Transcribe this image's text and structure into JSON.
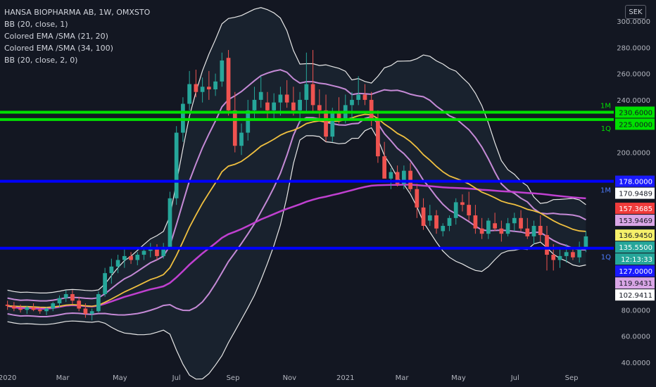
{
  "header": {
    "title": "HANSA BIOPHARMA AB, 1W, OMXSTO",
    "indicators": [
      "BB (20, close, 1)",
      "Colored EMA /SMA (21, 20)",
      "Colored EMA /SMA (34, 100)",
      "BB (20, close, 2, 0)"
    ],
    "currency": "SEK"
  },
  "colors": {
    "background": "#131722",
    "up": "#26a69a",
    "down": "#ef5350",
    "bb2": "#e8e8e8",
    "bb1": "#c58ad6",
    "ema21": "#f0c040",
    "ema34": "#c040d0",
    "green_level": "#00e000",
    "blue_level": "#0000ff"
  },
  "chart_data": {
    "type": "candlestick",
    "title": "HANSA BIOPHARMA AB, 1W, OMXSTO",
    "ylim": [
      40,
      300
    ],
    "y_ticks": [
      "300.0000",
      "280.0000",
      "260.0000",
      "240.0000",
      "220.0000",
      "200.0000",
      "80.0000",
      "60.0000",
      "40.0000"
    ],
    "y_tick_values": [
      300,
      280,
      260,
      240,
      220,
      200,
      80,
      60,
      40
    ],
    "x_ticks": [
      "2020",
      "Mar",
      "May",
      "Jul",
      "Sep",
      "Nov",
      "2021",
      "Mar",
      "May",
      "Jul",
      "Sep"
    ],
    "x_tick_weeks": [
      0,
      8.5,
      17.3,
      26,
      34.7,
      43.4,
      52,
      60.7,
      69.4,
      78.1,
      86.8
    ],
    "candles_ohlc": [
      [
        84,
        87,
        80,
        83
      ],
      [
        83,
        86,
        79,
        81
      ],
      [
        81,
        84,
        78,
        80
      ],
      [
        80,
        83,
        77,
        82
      ],
      [
        82,
        85,
        79,
        80
      ],
      [
        80,
        82,
        77,
        79
      ],
      [
        79,
        82,
        76,
        81
      ],
      [
        81,
        86,
        79,
        85
      ],
      [
        85,
        91,
        82,
        89
      ],
      [
        89,
        95,
        86,
        92
      ],
      [
        92,
        95,
        84,
        87
      ],
      [
        87,
        90,
        79,
        81
      ],
      [
        81,
        85,
        74,
        77
      ],
      [
        77,
        81,
        72,
        79
      ],
      [
        79,
        94,
        78,
        92
      ],
      [
        92,
        112,
        90,
        108
      ],
      [
        108,
        119,
        100,
        113
      ],
      [
        113,
        122,
        108,
        118
      ],
      [
        118,
        126,
        112,
        121
      ],
      [
        121,
        124,
        115,
        118
      ],
      [
        118,
        124,
        114,
        122
      ],
      [
        122,
        128,
        118,
        125
      ],
      [
        125,
        131,
        120,
        127
      ],
      [
        127,
        130,
        118,
        121
      ],
      [
        121,
        131,
        119,
        128
      ],
      [
        128,
        170,
        126,
        165
      ],
      [
        165,
        220,
        160,
        215
      ],
      [
        215,
        242,
        208,
        237
      ],
      [
        237,
        262,
        232,
        252
      ],
      [
        252,
        263,
        242,
        246
      ],
      [
        246,
        257,
        238,
        250
      ],
      [
        250,
        262,
        240,
        248
      ],
      [
        248,
        260,
        243,
        254
      ],
      [
        254,
        276,
        250,
        270
      ],
      [
        272,
        278,
        228,
        232
      ],
      [
        232,
        246,
        200,
        205
      ],
      [
        205,
        222,
        198,
        215
      ],
      [
        215,
        240,
        209,
        232
      ],
      [
        232,
        250,
        226,
        240
      ],
      [
        240,
        258,
        234,
        246
      ],
      [
        238,
        246,
        226,
        232
      ],
      [
        232,
        245,
        224,
        238
      ],
      [
        238,
        250,
        228,
        244
      ],
      [
        244,
        255,
        234,
        238
      ],
      [
        238,
        250,
        228,
        232
      ],
      [
        232,
        246,
        222,
        240
      ],
      [
        240,
        276,
        230,
        252
      ],
      [
        252,
        278,
        230,
        236
      ],
      [
        236,
        248,
        226,
        232
      ],
      [
        232,
        244,
        208,
        212
      ],
      [
        212,
        234,
        208,
        230
      ],
      [
        230,
        242,
        222,
        226
      ],
      [
        226,
        244,
        222,
        236
      ],
      [
        236,
        246,
        226,
        240
      ],
      [
        240,
        258,
        236,
        244
      ],
      [
        244,
        252,
        236,
        240
      ],
      [
        240,
        246,
        220,
        225
      ],
      [
        225,
        232,
        192,
        197
      ],
      [
        197,
        208,
        185,
        180
      ],
      [
        180,
        188,
        172,
        185
      ],
      [
        185,
        190,
        174,
        176
      ],
      [
        176,
        190,
        172,
        186
      ],
      [
        186,
        192,
        170,
        172
      ],
      [
        172,
        176,
        150,
        158
      ],
      [
        158,
        165,
        141,
        144
      ],
      [
        148,
        160,
        144,
        152
      ],
      [
        152,
        156,
        138,
        142
      ],
      [
        140,
        146,
        136,
        144
      ],
      [
        144,
        152,
        140,
        150
      ],
      [
        150,
        165,
        145,
        162
      ],
      [
        162,
        168,
        155,
        160
      ],
      [
        160,
        170,
        148,
        152
      ],
      [
        152,
        160,
        138,
        142
      ],
      [
        142,
        150,
        134,
        138
      ],
      [
        138,
        150,
        134,
        148
      ],
      [
        146,
        154,
        140,
        142
      ],
      [
        142,
        148,
        132,
        138
      ],
      [
        138,
        150,
        136,
        146
      ],
      [
        146,
        154,
        140,
        150
      ],
      [
        150,
        156,
        140,
        142
      ],
      [
        142,
        150,
        134,
        136
      ],
      [
        136,
        148,
        130,
        144
      ],
      [
        144,
        152,
        132,
        137
      ],
      [
        137,
        144,
        110,
        122
      ],
      [
        122,
        130,
        110,
        118
      ],
      [
        118,
        126,
        112,
        121
      ],
      [
        121,
        130,
        116,
        124
      ],
      [
        124,
        128,
        118,
        120
      ],
      [
        120,
        132,
        116,
        128
      ],
      [
        128,
        140,
        124,
        136
      ]
    ],
    "series": [
      {
        "name": "BB (20, close, 2, 0)"
      },
      {
        "name": "BB (20, close, 1)"
      },
      {
        "name": "Colored EMA /SMA (21, 20)"
      },
      {
        "name": "Colored EMA /SMA (34, 100)"
      }
    ],
    "horizontal_levels": [
      {
        "label": "1M",
        "value": 230.6,
        "color": "#00e000"
      },
      {
        "label": "1Q",
        "value": 225.0,
        "color": "#00e000"
      },
      {
        "label": "1M",
        "value": 178.0,
        "color": "#0000ff"
      },
      {
        "label": "1Q",
        "value": 127.0,
        "color": "#0000ff"
      }
    ],
    "price_tags": [
      {
        "text": "230.6000",
        "value": 230.6,
        "bg": "#00e000",
        "fg": "#131722"
      },
      {
        "text": "225.0000",
        "value": 225.0,
        "bg": "#00e000",
        "fg": "#131722"
      },
      {
        "text": "178.0000",
        "value": 178.0,
        "bg": "#1a1aff",
        "fg": "#ffffff"
      },
      {
        "text": "170.9489",
        "value": 170.9489,
        "bg": "#ffffff",
        "fg": "#131722"
      },
      {
        "text": "157.3685",
        "value": 157.3685,
        "bg": "#ef3b3b",
        "fg": "#ffffff"
      },
      {
        "text": "153.9469",
        "value": 153.9469,
        "bg": "#d9a6e6",
        "fg": "#131722"
      },
      {
        "text": "136.9450",
        "value": 136.945,
        "bg": "#f5f06a",
        "fg": "#131722"
      },
      {
        "text": "135.5500",
        "value": 135.55,
        "bg": "#26a69a",
        "fg": "#ffffff"
      },
      {
        "text": "12:13:33",
        "value": 131.8,
        "bg": "#26a69a",
        "fg": "#ffffff"
      },
      {
        "text": "127.0000",
        "value": 127.0,
        "bg": "#1a1aff",
        "fg": "#ffffff"
      },
      {
        "text": "119.9431",
        "value": 119.9431,
        "bg": "#d9a6e6",
        "fg": "#131722"
      },
      {
        "text": "102.9411",
        "value": 102.9411,
        "bg": "#ffffff",
        "fg": "#131722"
      }
    ]
  }
}
